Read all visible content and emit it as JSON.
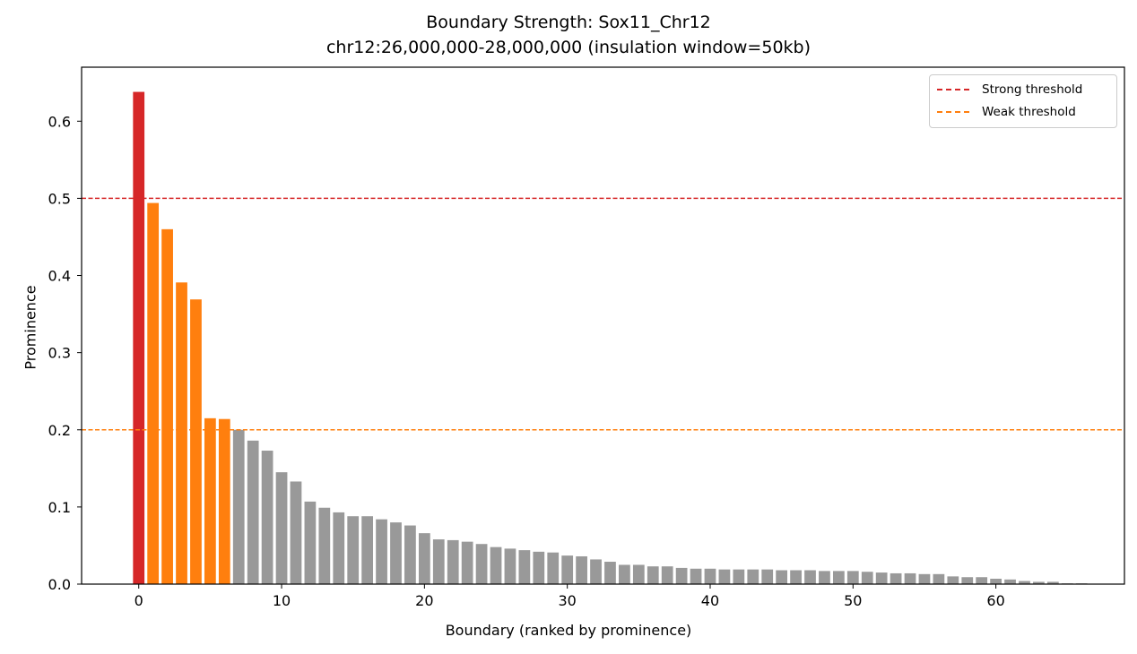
{
  "chart_data": {
    "type": "bar",
    "title": "Boundary Strength: Sox11_Chr12",
    "subtitle": "chr12:26,000,000-28,000,000 (insulation window=50kb)",
    "xlabel": "Boundary (ranked by prominence)",
    "ylabel": "Prominence",
    "xlim": [
      -4,
      69
    ],
    "ylim": [
      0,
      0.67
    ],
    "xticks": [
      0,
      10,
      20,
      30,
      40,
      50,
      60
    ],
    "yticks": [
      0.0,
      0.1,
      0.2,
      0.3,
      0.4,
      0.5,
      0.6
    ],
    "grid": false,
    "legend_position": "upper right",
    "thresholds": [
      {
        "name": "Strong threshold",
        "value": 0.5,
        "color": "#d62728",
        "style": "dashed"
      },
      {
        "name": "Weak threshold",
        "value": 0.2,
        "color": "#ff7f0e",
        "style": "dashed"
      }
    ],
    "colors": {
      "strong": "#d62728",
      "weak": "#ff7f0e",
      "other": "#999999"
    },
    "x": [
      0,
      1,
      2,
      3,
      4,
      5,
      6,
      7,
      8,
      9,
      10,
      11,
      12,
      13,
      14,
      15,
      16,
      17,
      18,
      19,
      20,
      21,
      22,
      23,
      24,
      25,
      26,
      27,
      28,
      29,
      30,
      31,
      32,
      33,
      34,
      35,
      36,
      37,
      38,
      39,
      40,
      41,
      42,
      43,
      44,
      45,
      46,
      47,
      48,
      49,
      50,
      51,
      52,
      53,
      54,
      55,
      56,
      57,
      58,
      59,
      60,
      61,
      62,
      63,
      64,
      65,
      66
    ],
    "values": [
      0.638,
      0.494,
      0.46,
      0.391,
      0.369,
      0.215,
      0.214,
      0.2,
      0.186,
      0.173,
      0.145,
      0.133,
      0.107,
      0.099,
      0.093,
      0.088,
      0.088,
      0.084,
      0.08,
      0.076,
      0.066,
      0.058,
      0.057,
      0.055,
      0.052,
      0.048,
      0.046,
      0.044,
      0.042,
      0.041,
      0.037,
      0.036,
      0.032,
      0.029,
      0.025,
      0.025,
      0.023,
      0.023,
      0.021,
      0.02,
      0.02,
      0.019,
      0.019,
      0.019,
      0.019,
      0.018,
      0.018,
      0.018,
      0.017,
      0.017,
      0.017,
      0.016,
      0.015,
      0.014,
      0.014,
      0.013,
      0.013,
      0.01,
      0.009,
      0.009,
      0.007,
      0.006,
      0.004,
      0.003,
      0.003,
      0.001,
      0.001
    ]
  }
}
